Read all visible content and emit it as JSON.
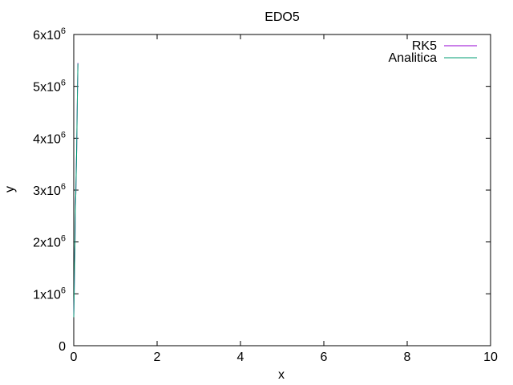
{
  "chart_data": {
    "type": "line",
    "title": "EDO5",
    "xlabel": "x",
    "ylabel": "y",
    "xlim": [
      0,
      10
    ],
    "ylim": [
      0,
      6000000
    ],
    "grid": false,
    "legend_position": "top-right",
    "x_ticks": [
      {
        "value": 0,
        "label": "0"
      },
      {
        "value": 2,
        "label": "2"
      },
      {
        "value": 4,
        "label": "4"
      },
      {
        "value": 6,
        "label": "6"
      },
      {
        "value": 8,
        "label": "8"
      },
      {
        "value": 10,
        "label": "10"
      }
    ],
    "y_ticks": [
      {
        "value": 0,
        "mantissa": "0",
        "exp": ""
      },
      {
        "value": 1000000,
        "mantissa": "1x10",
        "exp": "6"
      },
      {
        "value": 2000000,
        "mantissa": "2x10",
        "exp": "6"
      },
      {
        "value": 3000000,
        "mantissa": "3x10",
        "exp": "6"
      },
      {
        "value": 4000000,
        "mantissa": "4x10",
        "exp": "6"
      },
      {
        "value": 5000000,
        "mantissa": "5x10",
        "exp": "6"
      },
      {
        "value": 6000000,
        "mantissa": "6x10",
        "exp": "6"
      }
    ],
    "series": [
      {
        "name": "RK5",
        "color": "#9400d3",
        "x": [
          0.0,
          0.01,
          0.02,
          0.03,
          0.04,
          0.05,
          0.06,
          0.07,
          0.08,
          0.09,
          0.1
        ],
        "y": [
          550000,
          1000000,
          1600000,
          2000000,
          2700000,
          2950000,
          3400000,
          3800000,
          4400000,
          5000000,
          5450000
        ]
      },
      {
        "name": "Analitica",
        "color": "#009e73",
        "x": [
          0.0,
          0.01,
          0.02,
          0.03,
          0.04,
          0.05,
          0.06,
          0.07,
          0.08,
          0.09,
          0.1
        ],
        "y": [
          550000,
          990000,
          1590000,
          1990000,
          2690000,
          2940000,
          3390000,
          3790000,
          4390000,
          4990000,
          5440000
        ]
      }
    ]
  }
}
